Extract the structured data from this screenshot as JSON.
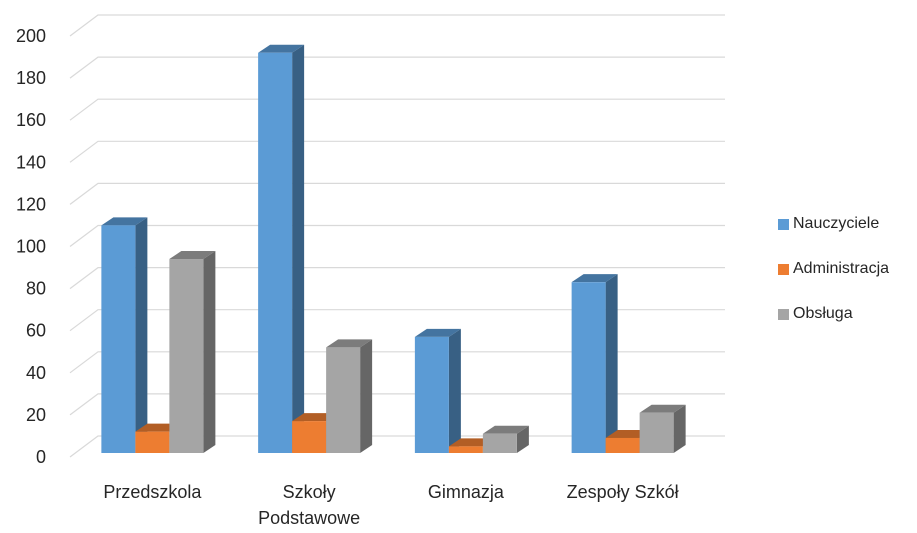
{
  "chart_data": {
    "type": "bar",
    "title": "",
    "xlabel": "",
    "ylabel": "",
    "ylim": [
      0,
      200
    ],
    "yticks": [
      0,
      20,
      40,
      60,
      80,
      100,
      120,
      140,
      160,
      180,
      200
    ],
    "grid": true,
    "legend_position": "right",
    "categories": [
      [
        "Przedszkola"
      ],
      [
        "Szkoły",
        "Podstawowe"
      ],
      [
        "Gimnazja"
      ],
      [
        "Zespoły Szkół"
      ]
    ],
    "series": [
      {
        "name": "Nauczyciele",
        "color": "#5B9BD5",
        "values": [
          111,
          193,
          58,
          84
        ]
      },
      {
        "name": "Administracja",
        "color": "#ED7D31",
        "values": [
          13,
          18,
          6,
          10
        ]
      },
      {
        "name": "Obsługa",
        "color": "#A5A5A5",
        "values": [
          95,
          53,
          12,
          22
        ]
      }
    ]
  }
}
